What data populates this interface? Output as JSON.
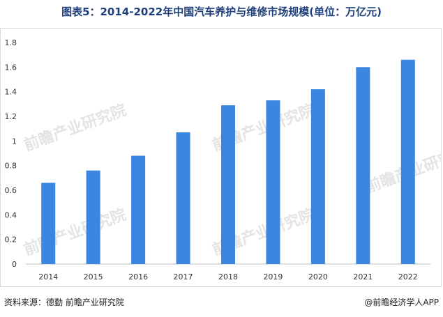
{
  "title": "图表5：2014-2022年中国汽车养护与维修市场规模(单位：万亿元)",
  "source": "资料来源：德勤 前瞻产业研究院",
  "credit": "@前瞻经济学人APP",
  "watermark": "前瞻产业研究院",
  "colors": {
    "bar": "#3b86e0",
    "title": "#1f3f7a",
    "axis": "#bfbfbf"
  },
  "chart_data": {
    "type": "bar",
    "title": "图表5：2014-2022年中国汽车养护与维修市场规模(单位：万亿元)",
    "xlabel": "",
    "ylabel": "",
    "categories": [
      "2014",
      "2015",
      "2016",
      "2017",
      "2018",
      "2019",
      "2020",
      "2021",
      "2022"
    ],
    "values": [
      0.66,
      0.76,
      0.88,
      1.07,
      1.29,
      1.33,
      1.42,
      1.6,
      1.66
    ],
    "ylim": [
      0,
      1.8
    ],
    "yticks": [
      "0",
      "0.2",
      "0.4",
      "0.6",
      "0.8",
      "1",
      "1.2",
      "1.4",
      "1.6",
      "1.8"
    ],
    "grid": false,
    "legend": "none"
  }
}
